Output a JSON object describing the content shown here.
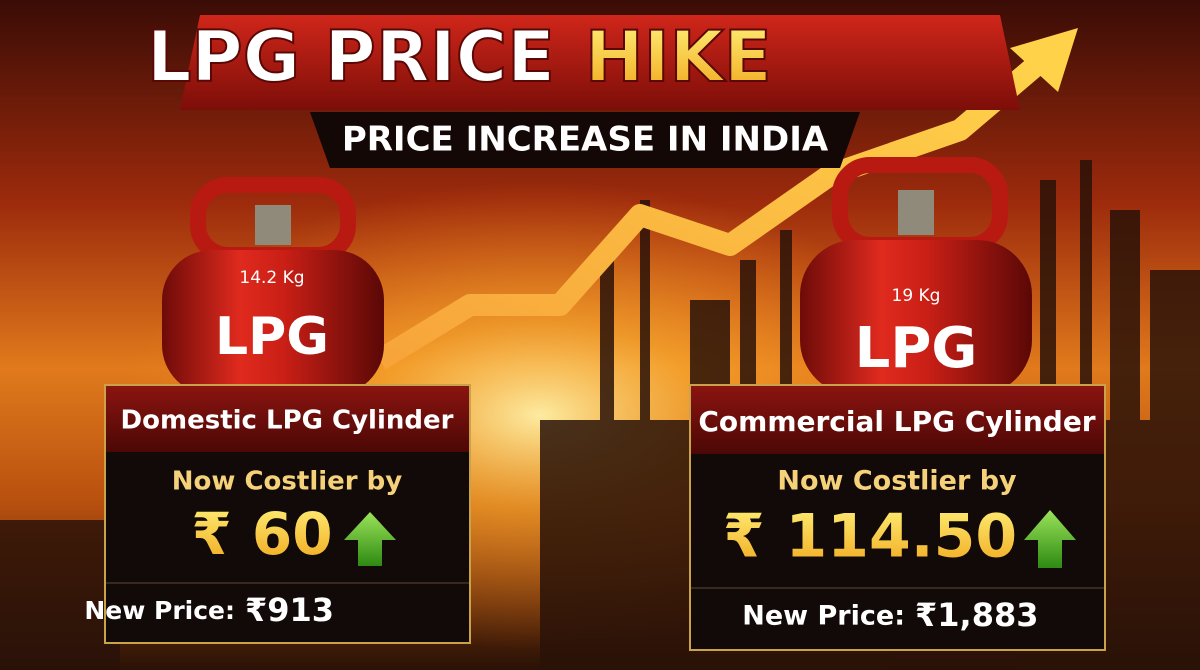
{
  "header": {
    "title": "LPG PRICE",
    "title_highlight": "HIKE",
    "subtitle": "PRICE INCREASE IN INDIA"
  },
  "cylinders": [
    {
      "weight": "14.2 Kg",
      "label": "LPG"
    },
    {
      "weight": "19 Kg",
      "label": "LPG"
    }
  ],
  "cards": [
    {
      "title": "Domestic LPG Cylinder",
      "caption": "Now Costlier by",
      "increase": "₹ 60",
      "new_price_label": "New Price:",
      "new_price": "₹913"
    },
    {
      "title": "Commercial LPG Cylinder",
      "caption": "Now Costlier by",
      "increase": "₹ 114.50",
      "new_price_label": "New Price:",
      "new_price": "₹1,883"
    }
  ]
}
